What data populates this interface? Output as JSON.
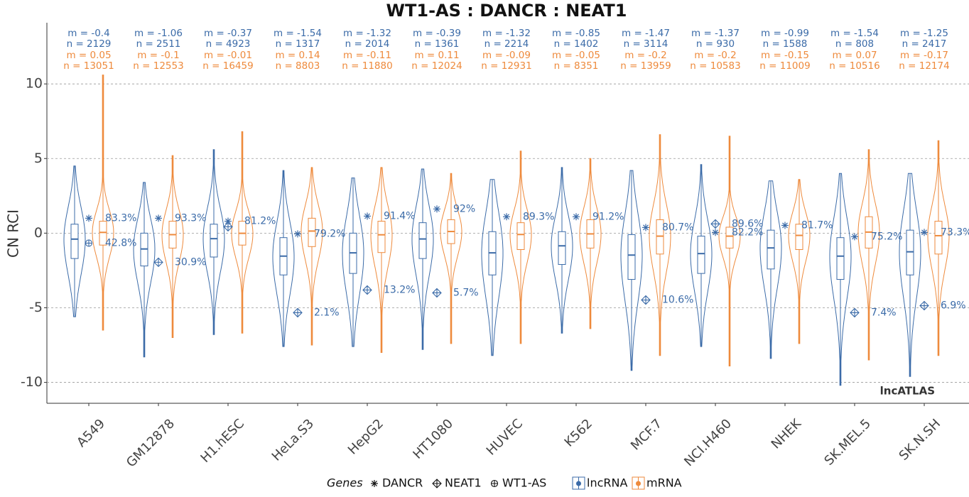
{
  "chart_data": {
    "type": "violin",
    "title": "WT1-AS : DANCR : NEAT1",
    "y_label": "CN RCI",
    "watermark": "lncATLAS",
    "legend_title": "Genes",
    "categories": [
      "A549",
      "GM12878",
      "H1.hESC",
      "HeLa.S3",
      "HepG2",
      "HT1080",
      "HUVEC",
      "K562",
      "MCF.7",
      "NCI.H460",
      "NHEK",
      "SK.MEL.5",
      "SK.N.SH"
    ],
    "ylim": [
      -11.4,
      14.1
    ],
    "yticks": [
      -10,
      -5,
      0,
      5,
      10
    ],
    "grid": true,
    "series": [
      {
        "name": "lncRNA",
        "color": "#3b6ba8",
        "min": [
          -5.6,
          -8.3,
          -6.8,
          -7.6,
          -7.6,
          -7.8,
          -8.2,
          -6.7,
          -9.2,
          -7.6,
          -8.4,
          -10.2,
          -9.6
        ],
        "q1": [
          -1.7,
          -2.2,
          -1.6,
          -2.8,
          -2.7,
          -1.7,
          -2.8,
          -2.1,
          -3.1,
          -2.7,
          -2.4,
          -3.1,
          -2.8
        ],
        "median": [
          -0.4,
          -1.06,
          -0.37,
          -1.54,
          -1.32,
          -0.39,
          -1.32,
          -0.85,
          -1.47,
          -1.37,
          -0.99,
          -1.54,
          -1.25
        ],
        "q3": [
          0.6,
          0.0,
          0.6,
          -0.3,
          0.0,
          0.7,
          0.1,
          0.1,
          -0.1,
          -0.2,
          0.2,
          -0.3,
          0.2
        ],
        "max": [
          4.5,
          3.4,
          5.6,
          4.2,
          3.7,
          4.3,
          3.6,
          4.4,
          4.2,
          4.6,
          3.5,
          4.0,
          4.0
        ],
        "m_labels": [
          "m = -0.4",
          "m = -1.06",
          "m = -0.37",
          "m = -1.54",
          "m = -1.32",
          "m = -0.39",
          "m = -1.32",
          "m = -0.85",
          "m = -1.47",
          "m = -1.37",
          "m = -0.99",
          "m = -1.54",
          "m = -1.25"
        ],
        "n_labels": [
          "n = 2129",
          "n = 2511",
          "n = 4923",
          "n = 1317",
          "n = 2014",
          "n = 1361",
          "n = 2214",
          "n = 1402",
          "n = 3114",
          "n = 930",
          "n = 1588",
          "n = 808",
          "n = 2417"
        ]
      },
      {
        "name": "mRNA",
        "color": "#ee8a3c",
        "min": [
          -6.5,
          -7.0,
          -6.7,
          -7.5,
          -8.0,
          -7.4,
          -7.4,
          -6.4,
          -8.2,
          -8.9,
          -7.4,
          -8.5,
          -8.2
        ],
        "q1": [
          -0.8,
          -1.0,
          -0.8,
          -0.9,
          -1.3,
          -0.7,
          -1.1,
          -1.0,
          -1.4,
          -1.0,
          -1.1,
          -1.0,
          -1.4
        ],
        "median": [
          0.05,
          -0.1,
          -0.01,
          0.14,
          -0.11,
          0.11,
          -0.09,
          -0.05,
          -0.2,
          -0.2,
          -0.15,
          0.07,
          -0.17
        ],
        "q3": [
          0.8,
          0.8,
          0.8,
          1.0,
          0.8,
          0.9,
          0.7,
          0.9,
          0.9,
          0.4,
          0.6,
          1.1,
          0.8
        ],
        "max": [
          10.6,
          5.2,
          6.8,
          4.4,
          4.4,
          4.0,
          5.5,
          5.0,
          6.6,
          6.5,
          3.6,
          5.6,
          6.2
        ],
        "m_labels": [
          "m = 0.05",
          "m = -0.1",
          "m = -0.01",
          "m = 0.14",
          "m = -0.11",
          "m = 0.11",
          "m = -0.09",
          "m = -0.05",
          "m = -0.2",
          "m = -0.2",
          "m = -0.15",
          "m = 0.07",
          "m = -0.17"
        ],
        "n_labels": [
          "n = 13051",
          "n = 12553",
          "n = 16459",
          "n = 8803",
          "n = 11880",
          "n = 12024",
          "n = 12931",
          "n = 8351",
          "n = 13959",
          "n = 10583",
          "n = 11009",
          "n = 10516",
          "n = 12174"
        ]
      }
    ],
    "genes": [
      {
        "name": "DANCR",
        "symbol": "asterisk",
        "color": "#3b6ba8",
        "points": [
          {
            "category": "A549",
            "value": 1.0,
            "label": "83.3%"
          },
          {
            "category": "GM12878",
            "value": 1.0,
            "label": "93.3%"
          },
          {
            "category": "H1.hESC",
            "value": 0.8,
            "label": "81.2%"
          },
          {
            "category": "HeLa.S3",
            "value": -0.05,
            "label": "79.2%"
          },
          {
            "category": "HepG2",
            "value": 1.14,
            "label": "91.4%"
          },
          {
            "category": "HT1080",
            "value": 1.62,
            "label": "92%"
          },
          {
            "category": "HUVEC",
            "value": 1.1,
            "label": "89.3%"
          },
          {
            "category": "K562",
            "value": 1.1,
            "label": "91.2%"
          },
          {
            "category": "MCF.7",
            "value": 0.38,
            "label": "80.7%"
          },
          {
            "category": "NCI.H460",
            "value": 0.05,
            "label": "82.2%"
          },
          {
            "category": "NHEK",
            "value": 0.52,
            "label": "81.7%"
          },
          {
            "category": "SK.MEL.5",
            "value": -0.24,
            "label": "75.2%"
          },
          {
            "category": "SK.N.SH",
            "value": 0.05,
            "label": "73.3%"
          }
        ]
      },
      {
        "name": "NEAT1",
        "symbol": "diamond-plus",
        "color": "#3b6ba8",
        "points": [
          {
            "category": "GM12878",
            "value": -1.95,
            "label": "30.9%"
          },
          {
            "category": "H1.hESC",
            "value": 0.43
          },
          {
            "category": "HeLa.S3",
            "value": -5.33,
            "label": "2.1%"
          },
          {
            "category": "HepG2",
            "value": -3.81,
            "label": "13.2%"
          },
          {
            "category": "HT1080",
            "value": -4.0,
            "label": "5.7%"
          },
          {
            "category": "MCF.7",
            "value": -4.48,
            "label": "10.6%"
          },
          {
            "category": "NCI.H460",
            "value": 0.62,
            "label": "89.6%"
          },
          {
            "category": "SK.MEL.5",
            "value": -5.33,
            "label": "7.4%"
          },
          {
            "category": "SK.N.SH",
            "value": -4.86,
            "label": "6.9%"
          }
        ]
      },
      {
        "name": "WT1-AS",
        "symbol": "circle-plus",
        "color": "#3b6ba8",
        "points": [
          {
            "category": "A549",
            "value": -0.67,
            "label": "42.8%"
          }
        ]
      }
    ]
  }
}
